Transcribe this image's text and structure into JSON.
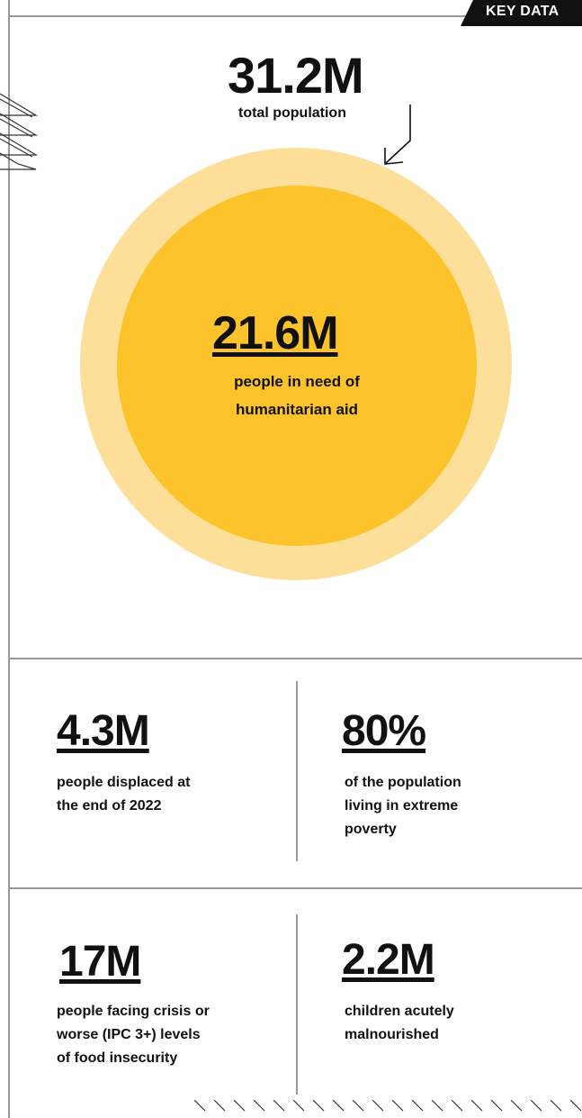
{
  "tag": "KEY DATA",
  "total": {
    "value": "31.2M",
    "label": "total population"
  },
  "in_need": {
    "value": "21.6M",
    "label_line1": "people in need of",
    "label_line2": "humanitarian aid"
  },
  "stats": [
    {
      "value": "4.3M",
      "label": [
        "people displaced at",
        "the end of 2022"
      ]
    },
    {
      "value": "80%",
      "label": [
        "of the population",
        "living in extreme",
        "poverty"
      ]
    },
    {
      "value": "17M",
      "label": [
        "people facing crisis or",
        "worse (IPC 3+) levels",
        "of food insecurity"
      ]
    },
    {
      "value": "2.2M",
      "label": [
        "children acutely",
        "malnourished"
      ]
    }
  ],
  "colors": {
    "outer_circle": "#fddf99",
    "inner_circle": "#fdc32b",
    "frame": "#9a9a9a"
  }
}
